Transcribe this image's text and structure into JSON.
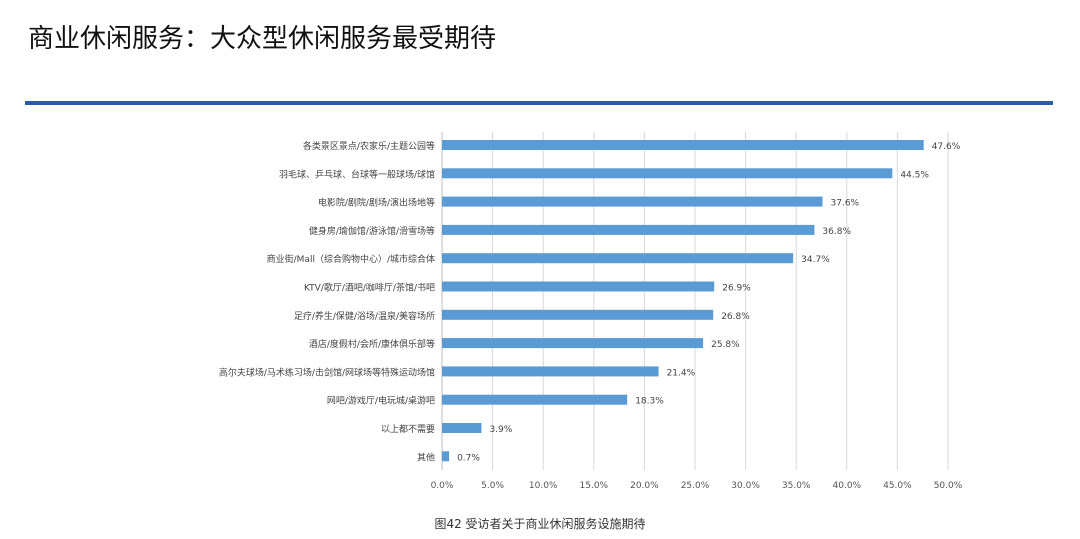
{
  "title": "商业休闲服务：大众型休闲服务最受期待",
  "chart_data": {
    "type": "bar",
    "orientation": "horizontal",
    "categories": [
      "各类景区景点/农家乐/主题公园等",
      "羽毛球、乒乓球、台球等一般球场/球馆",
      "电影院/剧院/剧场/演出场地等",
      "健身房/瑜伽馆/游泳馆/滑雪场等",
      "商业街/Mall（综合购物中心）/城市综合体",
      "KTV/歌厅/酒吧/咖啡厅/茶馆/书吧",
      "足疗/养生/保健/浴场/温泉/美容场所",
      "酒店/度假村/会所/康体俱乐部等",
      "高尔夫球场/马术练习场/击剑馆/网球场等特殊运动场馆",
      "网吧/游戏厅/电玩城/桌游吧",
      "以上都不需要",
      "其他"
    ],
    "values": [
      47.6,
      44.5,
      37.6,
      36.8,
      34.7,
      26.9,
      26.8,
      25.8,
      21.4,
      18.3,
      3.9,
      0.7
    ],
    "data_labels": [
      "47.6%",
      "44.5%",
      "37.6%",
      "36.8%",
      "34.7%",
      "26.9%",
      "26.8%",
      "25.8%",
      "21.4%",
      "18.3%",
      "3.9%",
      "0.7%"
    ],
    "xticks": [
      "0.0%",
      "5.0%",
      "10.0%",
      "15.0%",
      "20.0%",
      "25.0%",
      "30.0%",
      "35.0%",
      "40.0%",
      "45.0%",
      "50.0%"
    ],
    "xlim": [
      0,
      50
    ],
    "grid": true,
    "bar_color": "#5b9bd5",
    "caption": "图42 受访者关于商业休闲服务设施期待"
  }
}
